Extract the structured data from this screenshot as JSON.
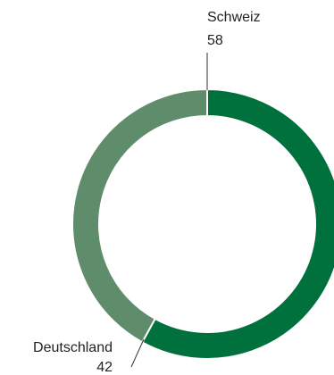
{
  "chart_data": {
    "type": "pie",
    "style": "donut",
    "start_angle_deg": 0,
    "direction": "clockwise",
    "slices": [
      {
        "label": "Schweiz",
        "value": 58,
        "value_label": "58",
        "color": "#00703c"
      },
      {
        "label": "Deutschland",
        "value": 42,
        "value_label": "42",
        "color": "#5f8c6a"
      }
    ]
  }
}
